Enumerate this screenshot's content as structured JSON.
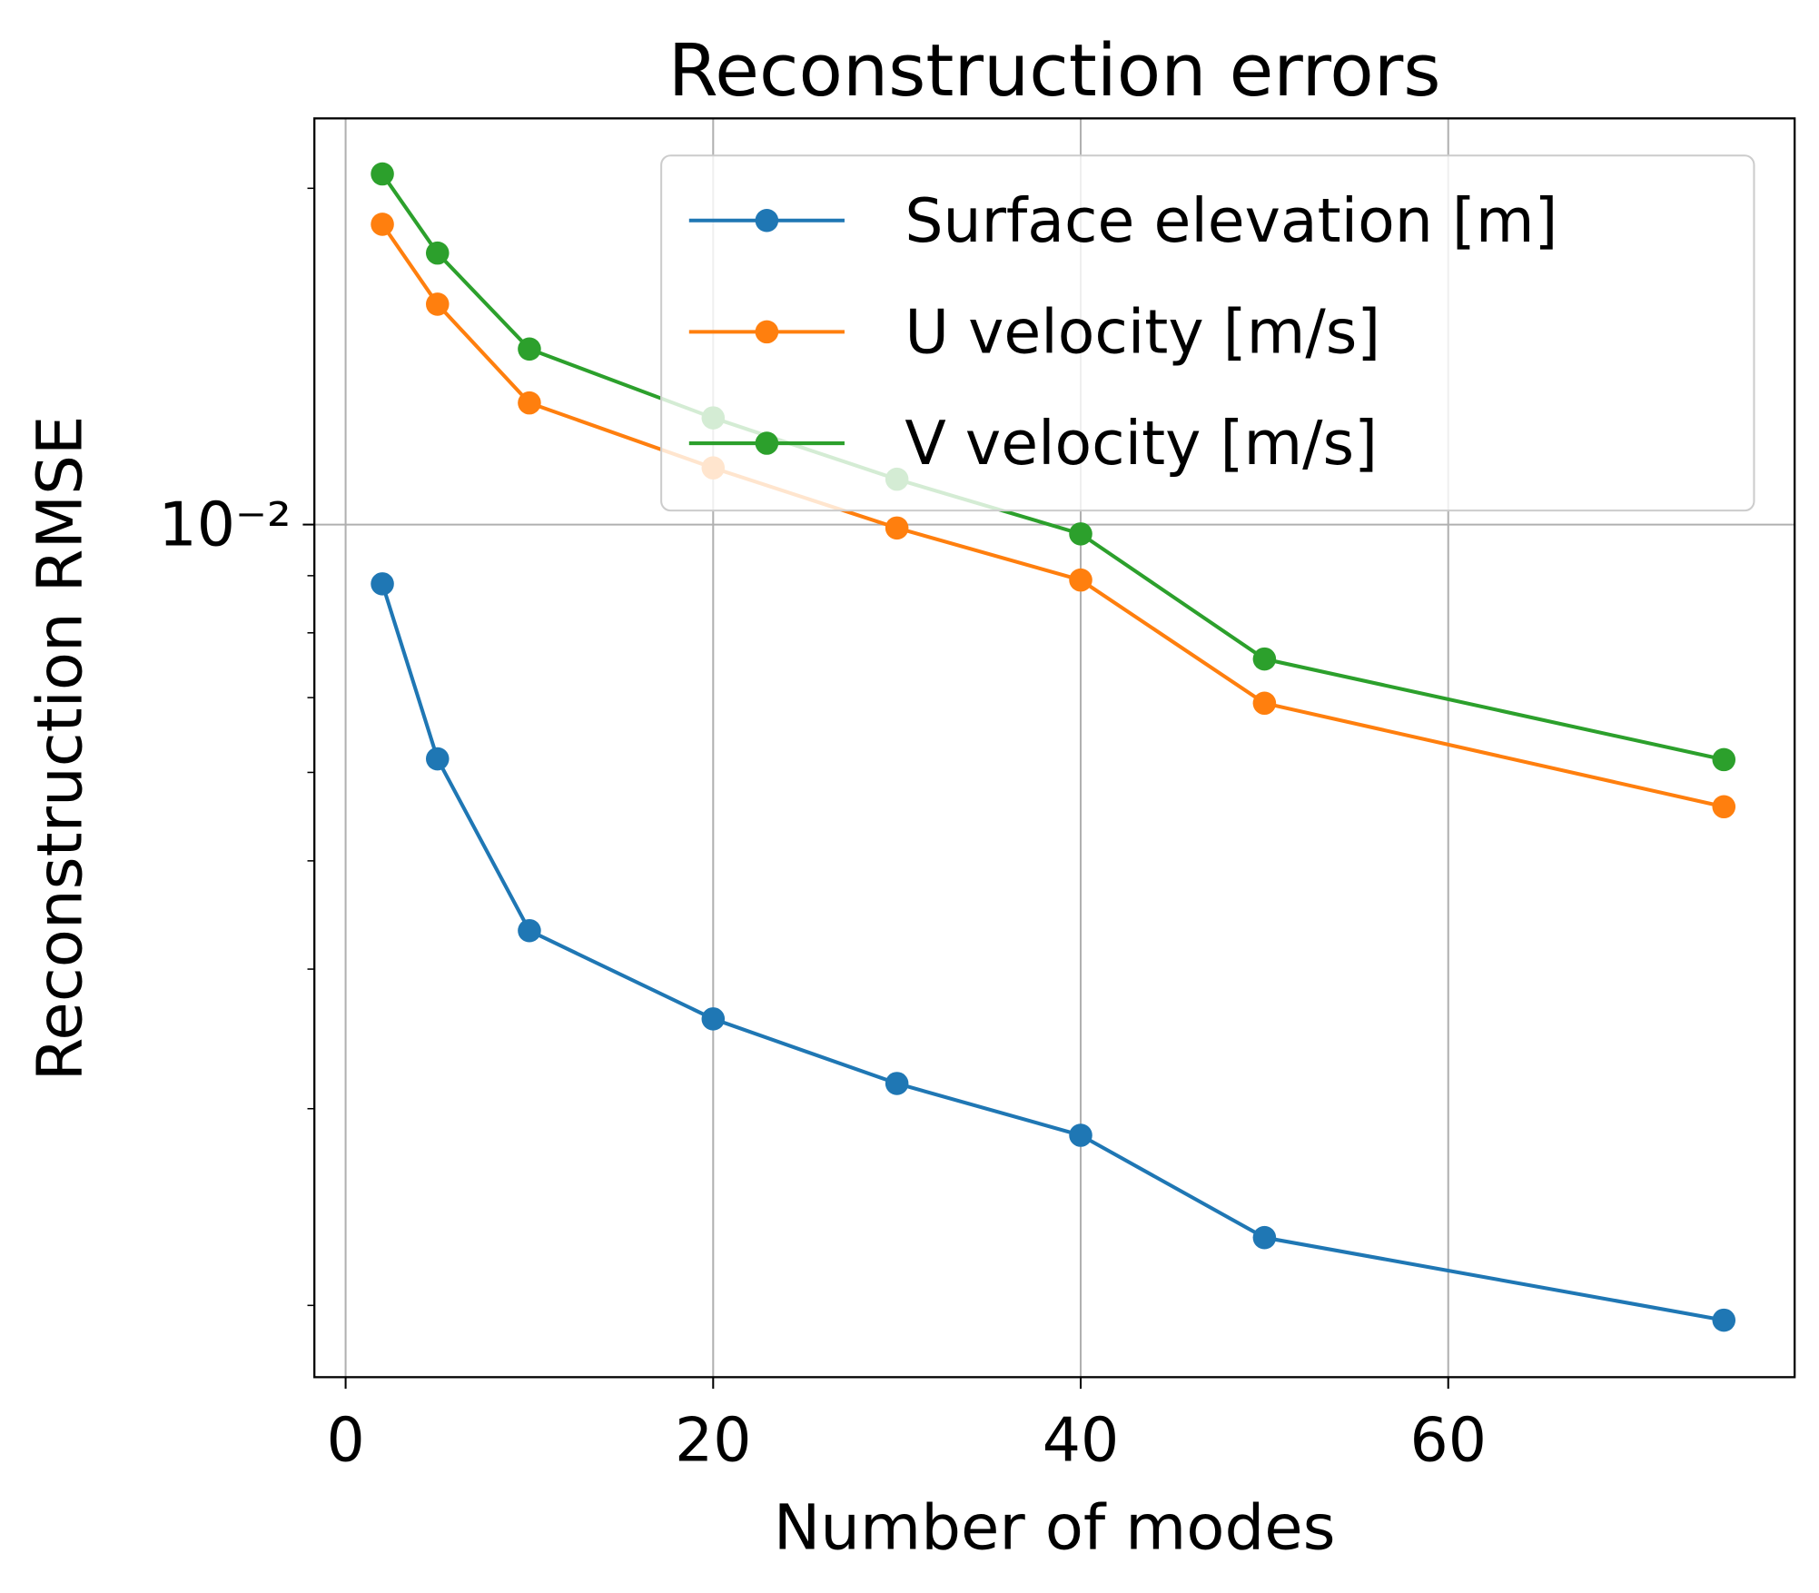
{
  "chart_data": {
    "type": "line",
    "title": "Reconstruction errors",
    "xlabel": "Number of modes",
    "ylabel": "Reconstruction RMSE",
    "x": [
      2,
      5,
      10,
      20,
      30,
      40,
      50,
      75
    ],
    "series": [
      {
        "name": "Surface elevation [m]",
        "color": "#1f77b4",
        "values": [
          0.00885,
          0.00617,
          0.00433,
          0.00361,
          0.00316,
          0.00284,
          0.0023,
          0.00194
        ]
      },
      {
        "name": "U velocity [m/s]",
        "color": "#ff7f0e",
        "values": [
          0.01857,
          0.01575,
          0.01285,
          0.01124,
          0.00993,
          0.00892,
          0.00692,
          0.00559
        ]
      },
      {
        "name": "V velocity [m/s]",
        "color": "#2ca02c",
        "values": [
          0.0206,
          0.0175,
          0.01436,
          0.01246,
          0.01098,
          0.00981,
          0.00758,
          0.00616
        ]
      }
    ],
    "xlim": [
      -1.7,
      78.85
    ],
    "xticks": [
      0,
      20,
      40,
      60
    ],
    "ylim": [
      0.001725,
      0.0231
    ],
    "ylog": true,
    "yticks": [
      {
        "value": 0.01,
        "label": "10⁻²"
      }
    ],
    "yminorticks": [
      0.002,
      0.003,
      0.004,
      0.005,
      0.006,
      0.007,
      0.008,
      0.009,
      0.02
    ],
    "grid": true,
    "legend": "upper right"
  }
}
